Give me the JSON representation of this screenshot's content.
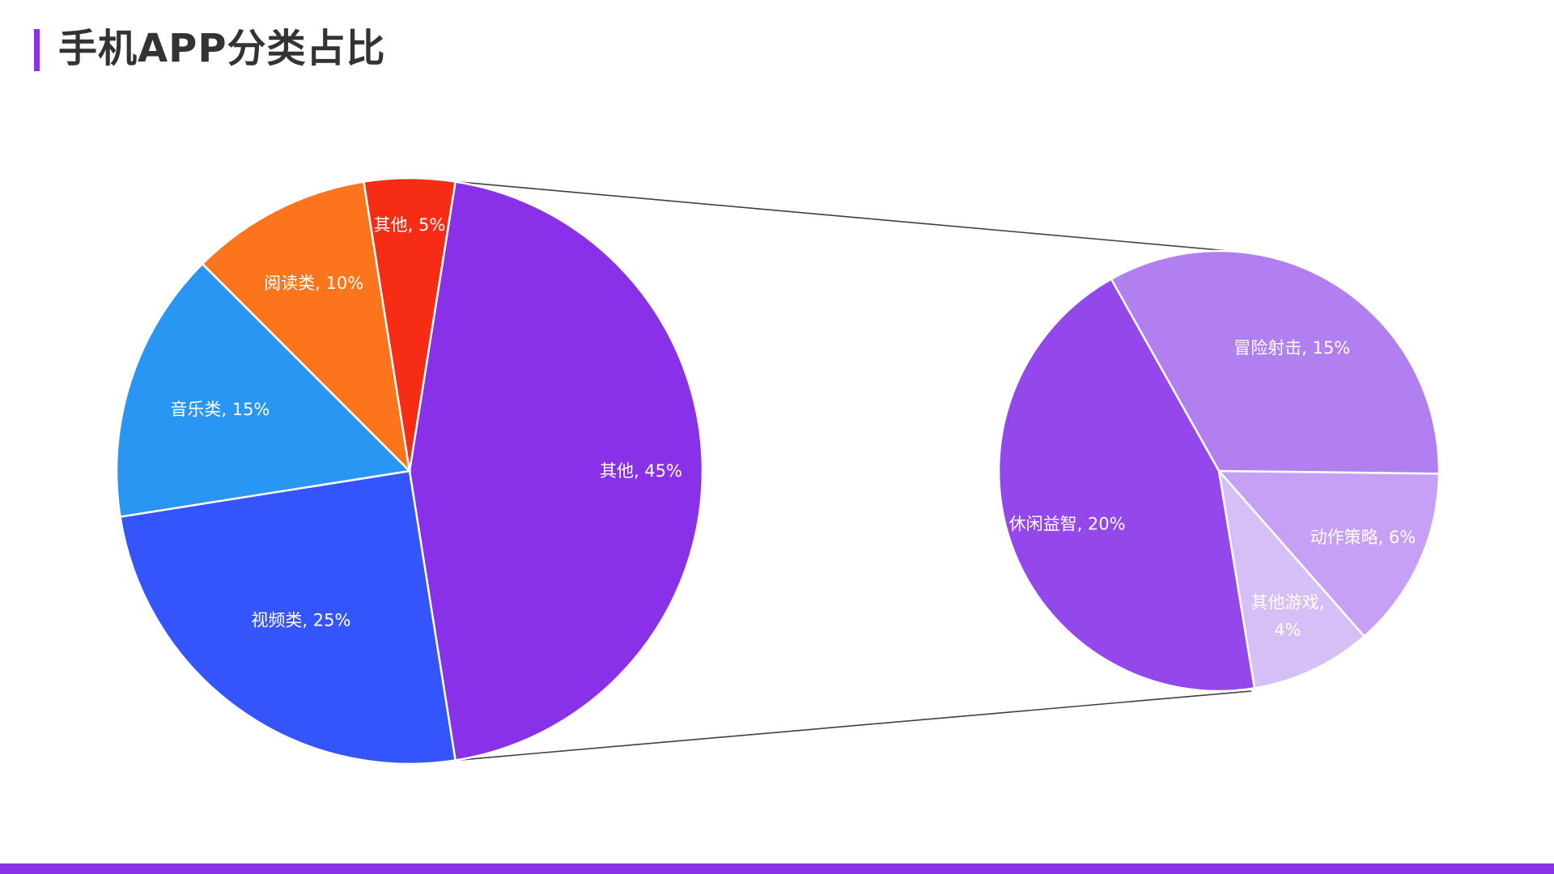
{
  "page": {
    "title": "手机APP分类占比",
    "accent_color": "#8a33e6"
  },
  "chart_data": {
    "type": "bar-of-pie",
    "main_pie": {
      "slices": [
        {
          "label": "其他",
          "value": 45,
          "display": "其他, 45%",
          "color": "#8831e8"
        },
        {
          "label": "视频类",
          "value": 25,
          "display": "视频类, 25%",
          "color": "#3455fb"
        },
        {
          "label": "音乐类",
          "value": 15,
          "display": "音乐类, 15%",
          "color": "#2996f3"
        },
        {
          "label": "阅读类",
          "value": 10,
          "display": "阅读类, 10%",
          "color": "#fc751d"
        },
        {
          "label": "其他",
          "value": 5,
          "display": "其他, 5%",
          "color": "#f72c15"
        }
      ]
    },
    "secondary_pie": {
      "expands": "其他, 45%",
      "slices": [
        {
          "label": "冒险射击",
          "value": 15,
          "display": "冒险射击, 15%",
          "color": "#b17ff0"
        },
        {
          "label": "动作策略",
          "value": 6,
          "display": "动作策略, 6%",
          "color": "#c6a0f4"
        },
        {
          "label": "其他游戏",
          "value": 4,
          "display_lines": [
            "其他游戏,",
            "4%"
          ],
          "color": "#d6bef7"
        },
        {
          "label": "休闲益智",
          "value": 20,
          "display": "休闲益智, 20%",
          "color": "#9447eb"
        }
      ]
    }
  }
}
